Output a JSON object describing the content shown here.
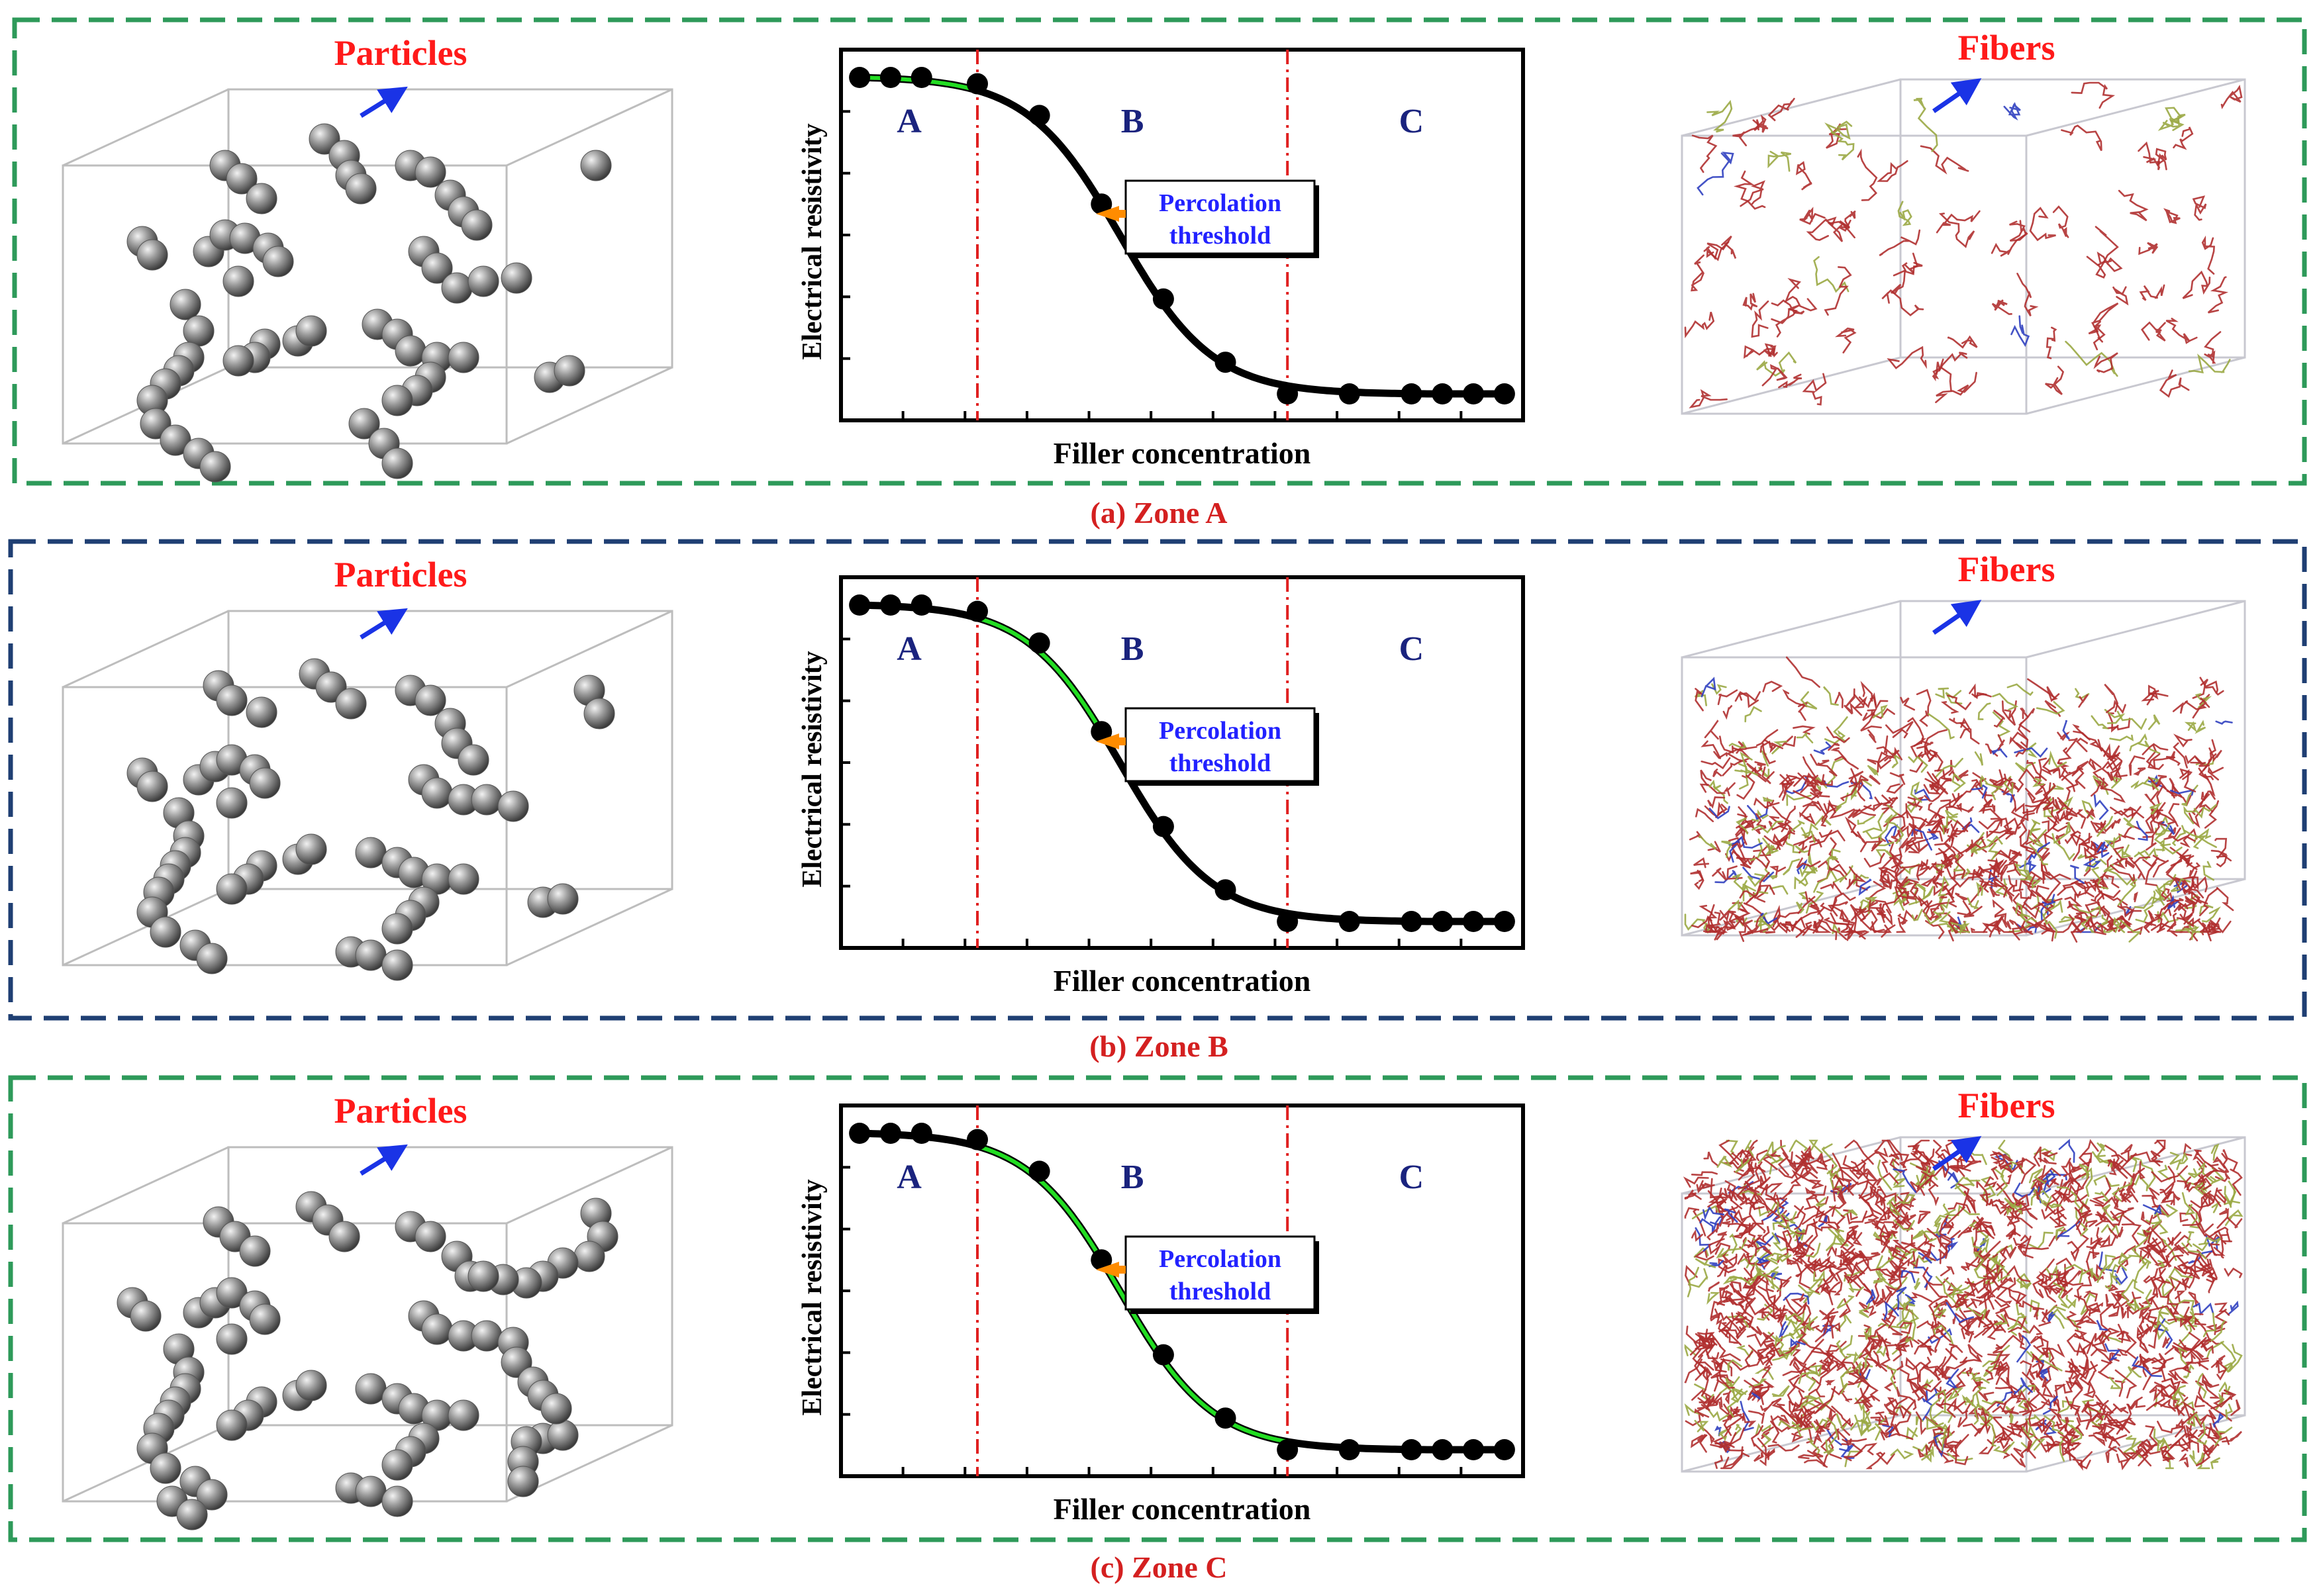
{
  "colors": {
    "panel_border_green": "#2e9a5a",
    "panel_border_navy": "#1f3f73",
    "caption_red": "#d42020",
    "label_red": "#ff1a1a",
    "arrow_blue": "#1a33e6",
    "region_letter": "#1a237e",
    "percolation_text": "#2222ff",
    "callout_arrow": "#ff8c00",
    "divider_red": "#e02020",
    "curve_black": "#000000",
    "curve_green": "#22dd22",
    "sphere": "#8a8a8a",
    "fiber_red": "#b03030",
    "fiber_olive": "#9aa844",
    "fiber_blue": "#3040c0"
  },
  "panels": [
    {
      "id": "a",
      "caption": "(a) Zone A",
      "particles_label": "Particles",
      "fibers_label": "Fibers",
      "fiber_density": "sparse",
      "green_segment": "zone-A",
      "chart_data": {
        "type": "line",
        "title": "",
        "xlabel": "Filler concentration",
        "ylabel": "Electrical resistivity",
        "regions": [
          "A",
          "B",
          "C"
        ],
        "region_boundaries": [
          0.22,
          0.72
        ],
        "curve": "sigmoid-decreasing",
        "x": [
          0.03,
          0.08,
          0.13,
          0.22,
          0.32,
          0.42,
          0.52,
          0.62,
          0.72,
          0.82,
          0.92,
          0.97,
          1.02,
          1.07
        ],
        "y": [
          1.0,
          1.0,
          1.0,
          0.98,
          0.88,
          0.6,
          0.3,
          0.1,
          0.0,
          0.0,
          0.0,
          0.0,
          0.0,
          0.0
        ],
        "annotation": {
          "line1": "Percolation",
          "line2": "threshold"
        },
        "ylim": [
          0,
          1
        ]
      }
    },
    {
      "id": "b",
      "caption": "(b) Zone B",
      "particles_label": "Particles",
      "fibers_label": "Fibers",
      "fiber_density": "medium",
      "green_segment": "zone-B",
      "chart_data": {
        "type": "line",
        "title": "",
        "xlabel": "Filler concentration",
        "ylabel": "Electrical resistivity",
        "regions": [
          "A",
          "B",
          "C"
        ],
        "region_boundaries": [
          0.22,
          0.72
        ],
        "curve": "sigmoid-decreasing",
        "x": [
          0.03,
          0.08,
          0.13,
          0.22,
          0.32,
          0.42,
          0.52,
          0.62,
          0.72,
          0.82,
          0.92,
          0.97,
          1.02,
          1.07
        ],
        "y": [
          1.0,
          1.0,
          1.0,
          0.98,
          0.88,
          0.6,
          0.3,
          0.1,
          0.0,
          0.0,
          0.0,
          0.0,
          0.0,
          0.0
        ],
        "annotation": {
          "line1": "Percolation",
          "line2": "threshold"
        },
        "ylim": [
          0,
          1
        ]
      }
    },
    {
      "id": "c",
      "caption": "(c) Zone C",
      "particles_label": "Particles",
      "fibers_label": "Fibers",
      "fiber_density": "dense",
      "green_segment": "zone-C",
      "chart_data": {
        "type": "line",
        "title": "",
        "xlabel": "Filler concentration",
        "ylabel": "Electrical resistivity",
        "regions": [
          "A",
          "B",
          "C"
        ],
        "region_boundaries": [
          0.22,
          0.72
        ],
        "curve": "sigmoid-decreasing",
        "x": [
          0.03,
          0.08,
          0.13,
          0.22,
          0.32,
          0.42,
          0.52,
          0.62,
          0.72,
          0.82,
          0.92,
          0.97,
          1.02,
          1.07
        ],
        "y": [
          1.0,
          1.0,
          1.0,
          0.98,
          0.88,
          0.6,
          0.3,
          0.1,
          0.0,
          0.0,
          0.0,
          0.0,
          0.0,
          0.0
        ],
        "annotation": {
          "line1": "Percolation",
          "line2": "threshold"
        },
        "ylim": [
          0,
          1
        ]
      }
    }
  ]
}
